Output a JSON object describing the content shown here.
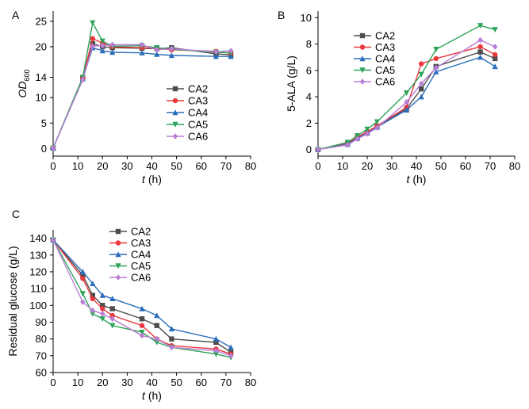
{
  "series_colors": {
    "CA2": "#4d4d4d",
    "CA3": "#e8383d",
    "CA4": "#2a6ebb",
    "CA5": "#2ea35a",
    "CA6": "#b97fd6"
  },
  "chart_data": [
    {
      "type": "line",
      "panel": "A",
      "xlabel": "t (h)",
      "ylabel": "OD600",
      "ylabel_main": "OD",
      "ylabel_sub": "600",
      "xlim": [
        0,
        80
      ],
      "ylim": [
        -1.5,
        27
      ],
      "xticks": [
        0,
        10,
        20,
        30,
        40,
        50,
        60,
        70,
        80
      ],
      "yticks": [
        0,
        5,
        10,
        14,
        20,
        25
      ],
      "ytick_labels": [
        "0",
        "5",
        "10",
        "14",
        "20",
        "25"
      ],
      "legend": "center-right",
      "series": [
        {
          "name": "CA2",
          "x": [
            0,
            12,
            16,
            20,
            24,
            36,
            42,
            48,
            66,
            72
          ],
          "y": [
            0.1,
            13.8,
            20.6,
            20.0,
            19.8,
            19.7,
            19.6,
            19.8,
            18.6,
            18.4
          ]
        },
        {
          "name": "CA3",
          "x": [
            0,
            12,
            16,
            20,
            24,
            36,
            42,
            48,
            66,
            72
          ],
          "y": [
            0.1,
            13.9,
            21.6,
            20.7,
            20.0,
            19.8,
            19.7,
            19.4,
            19.1,
            18.7
          ]
        },
        {
          "name": "CA4",
          "x": [
            0,
            12,
            16,
            20,
            24,
            36,
            42,
            48,
            66,
            72
          ],
          "y": [
            0.1,
            13.7,
            19.8,
            19.2,
            18.9,
            18.8,
            18.5,
            18.3,
            18.1,
            18.1
          ]
        },
        {
          "name": "CA5",
          "x": [
            0,
            12,
            16,
            20,
            24,
            36,
            42,
            48,
            66,
            72
          ],
          "y": [
            0.1,
            14.0,
            24.7,
            21.1,
            20.1,
            20.2,
            19.8,
            19.5,
            18.9,
            18.8
          ]
        },
        {
          "name": "CA6",
          "x": [
            0,
            12,
            16,
            20,
            24,
            36,
            42,
            48,
            66,
            72
          ],
          "y": [
            0.1,
            13.5,
            20.1,
            20.2,
            20.4,
            20.4,
            19.4,
            19.6,
            19.0,
            19.2
          ]
        }
      ]
    },
    {
      "type": "line",
      "panel": "B",
      "xlabel": "t (h)",
      "ylabel": "5-ALA (g/L)",
      "xlim": [
        0,
        80
      ],
      "ylim": [
        -0.5,
        10.5
      ],
      "xticks": [
        0,
        10,
        20,
        30,
        40,
        50,
        60,
        70,
        80
      ],
      "yticks": [
        0,
        2,
        4,
        6,
        8,
        10
      ],
      "ytick_labels": [
        "0",
        "2",
        "4",
        "6",
        "8",
        "10"
      ],
      "legend": "top-left",
      "series": [
        {
          "name": "CA2",
          "x": [
            0,
            12,
            16,
            20,
            24,
            36,
            42,
            48,
            66,
            72
          ],
          "y": [
            0,
            0.45,
            0.9,
            1.3,
            1.75,
            3.1,
            4.6,
            6.3,
            7.4,
            6.9
          ]
        },
        {
          "name": "CA3",
          "x": [
            0,
            12,
            16,
            20,
            24,
            36,
            42,
            48,
            66,
            72
          ],
          "y": [
            0,
            0.5,
            0.95,
            1.35,
            1.8,
            3.2,
            6.5,
            6.9,
            7.8,
            7.2
          ]
        },
        {
          "name": "CA4",
          "x": [
            0,
            12,
            16,
            20,
            24,
            36,
            42,
            48,
            66,
            72
          ],
          "y": [
            0,
            0.4,
            0.85,
            1.25,
            1.7,
            3.0,
            4.0,
            5.9,
            7.0,
            6.3
          ]
        },
        {
          "name": "CA5",
          "x": [
            0,
            12,
            16,
            20,
            24,
            36,
            42,
            48,
            66,
            72
          ],
          "y": [
            0,
            0.55,
            1.05,
            1.55,
            2.1,
            4.3,
            5.7,
            7.6,
            9.4,
            9.1
          ]
        },
        {
          "name": "CA6",
          "x": [
            0,
            12,
            16,
            20,
            24,
            36,
            42,
            48,
            66,
            72
          ],
          "y": [
            0,
            0.35,
            0.8,
            1.2,
            1.65,
            3.6,
            5.0,
            6.2,
            8.3,
            7.8
          ]
        }
      ]
    },
    {
      "type": "line",
      "panel": "C",
      "xlabel": "t (h)",
      "ylabel": "Residual glucose (g/L)",
      "xlim": [
        0,
        80
      ],
      "ylim": [
        60,
        145
      ],
      "xticks": [
        0,
        10,
        20,
        30,
        40,
        50,
        60,
        70,
        80
      ],
      "yticks": [
        60,
        70,
        80,
        90,
        100,
        110,
        120,
        130,
        140
      ],
      "ytick_labels": [
        "60",
        "70",
        "80",
        "90",
        "100",
        "110",
        "120",
        "130",
        "140"
      ],
      "legend": "top-center",
      "series": [
        {
          "name": "CA2",
          "x": [
            0,
            12,
            16,
            20,
            24,
            36,
            42,
            48,
            66,
            72
          ],
          "y": [
            139,
            118,
            106,
            100,
            98,
            92,
            88,
            80,
            78,
            72
          ]
        },
        {
          "name": "CA3",
          "x": [
            0,
            12,
            16,
            20,
            24,
            36,
            42,
            48,
            66,
            72
          ],
          "y": [
            139,
            116,
            104,
            98,
            94,
            88,
            80,
            76,
            74,
            71
          ]
        },
        {
          "name": "CA4",
          "x": [
            0,
            12,
            16,
            20,
            24,
            36,
            42,
            48,
            66,
            72
          ],
          "y": [
            139,
            120,
            113,
            106,
            104,
            98,
            94,
            86,
            80,
            75
          ]
        },
        {
          "name": "CA5",
          "x": [
            0,
            12,
            16,
            20,
            24,
            36,
            42,
            48,
            66,
            72
          ],
          "y": [
            139,
            107,
            95,
            92,
            88,
            84,
            78,
            75,
            71,
            69
          ]
        },
        {
          "name": "CA6",
          "x": [
            0,
            12,
            16,
            20,
            24,
            36,
            42,
            48,
            66,
            72
          ],
          "y": [
            139,
            102,
            97,
            95,
            92,
            82,
            80,
            75,
            73,
            70
          ]
        }
      ]
    }
  ]
}
